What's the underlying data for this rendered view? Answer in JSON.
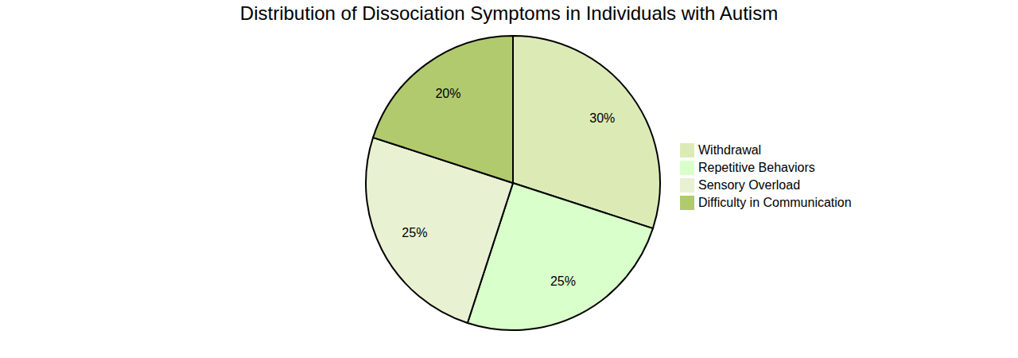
{
  "chart_data": {
    "type": "pie",
    "title": "Distribution of Dissociation Symptoms in Individuals with Autism",
    "categories": [
      "Withdrawal",
      "Repetitive Behaviors",
      "Sensory Overload",
      "Difficulty in Communication"
    ],
    "values": [
      30,
      25,
      25,
      20
    ],
    "value_labels": [
      "30%",
      "25%",
      "25%",
      "20%"
    ],
    "colors": [
      "#dcebb6",
      "#d9ffca",
      "#e8f2d3",
      "#b1ca6e"
    ],
    "data_labels": true,
    "legend": "right"
  }
}
